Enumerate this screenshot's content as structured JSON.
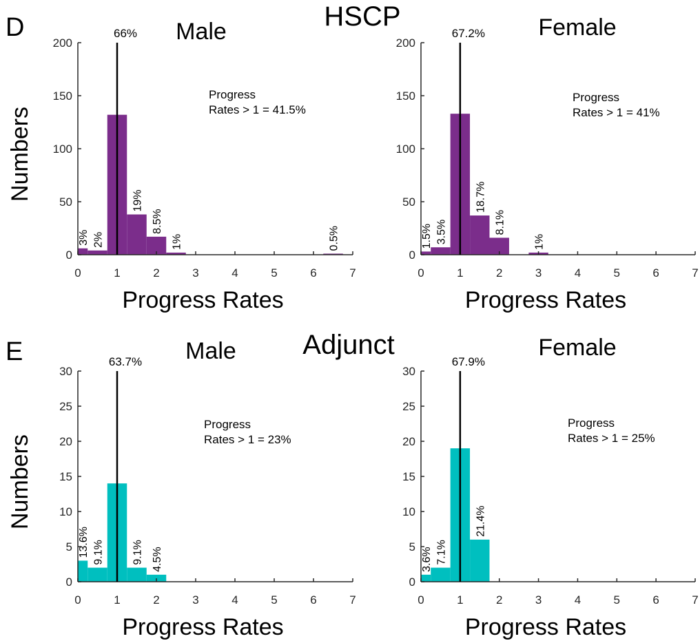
{
  "figure": {
    "panel_letters": [
      "D",
      "E"
    ],
    "group_titles": [
      "HSCP",
      "Adjunct"
    ]
  },
  "colors": {
    "purple": "#7b2d8b",
    "teal": "#00bfbf",
    "axis": "#262626",
    "text": "#000000"
  },
  "chart_data": [
    {
      "type": "bar",
      "group": "HSCP",
      "title": "Male",
      "xlabel": "Progress Rates",
      "ylabel": "Numbers",
      "xlim": [
        0,
        7
      ],
      "ylim": [
        0,
        200
      ],
      "xticks": [
        "0",
        "1",
        "2",
        "3",
        "4",
        "5",
        "6",
        "7"
      ],
      "yticks": [
        "0",
        "50",
        "100",
        "150",
        "200"
      ],
      "bin_width": 0.5,
      "bins": [
        {
          "start": 0.0,
          "value": 6,
          "label": "3%"
        },
        {
          "start": 0.25,
          "value": 4,
          "label": "2%"
        },
        {
          "start": 0.75,
          "value": 132,
          "label": ""
        },
        {
          "start": 1.25,
          "value": 38,
          "label": "19%"
        },
        {
          "start": 1.75,
          "value": 17,
          "label": "8.5%"
        },
        {
          "start": 2.25,
          "value": 2,
          "label": "1%"
        },
        {
          "start": 6.25,
          "value": 1,
          "label": "0.5%"
        }
      ],
      "ref_line": {
        "x": 1,
        "label": "66%"
      },
      "annotation": [
        "Progress",
        "Rates > 1 = 41.5%"
      ],
      "color": "#7b2d8b"
    },
    {
      "type": "bar",
      "group": "HSCP",
      "title": "Female",
      "xlabel": "Progress Rates",
      "ylabel": "",
      "xlim": [
        0,
        7
      ],
      "ylim": [
        0,
        200
      ],
      "xticks": [
        "0",
        "1",
        "2",
        "3",
        "4",
        "5",
        "6",
        "7"
      ],
      "yticks": [
        "0",
        "50",
        "100",
        "150",
        "200"
      ],
      "bin_width": 0.5,
      "bins": [
        {
          "start": 0.0,
          "value": 3,
          "label": "1.5%"
        },
        {
          "start": 0.25,
          "value": 7,
          "label": "3.5%"
        },
        {
          "start": 0.75,
          "value": 133,
          "label": ""
        },
        {
          "start": 1.25,
          "value": 37,
          "label": "18.7%"
        },
        {
          "start": 1.75,
          "value": 16,
          "label": "8.1%"
        },
        {
          "start": 2.75,
          "value": 2,
          "label": "1%"
        }
      ],
      "ref_line": {
        "x": 1,
        "label": "67.2%"
      },
      "annotation": [
        "Progress",
        "Rates > 1 = 41%"
      ],
      "color": "#7b2d8b"
    },
    {
      "type": "bar",
      "group": "Adjunct",
      "title": "Male",
      "xlabel": "Progress Rates",
      "ylabel": "Numbers",
      "xlim": [
        0,
        7
      ],
      "ylim": [
        0,
        30
      ],
      "xticks": [
        "0",
        "1",
        "2",
        "3",
        "4",
        "5",
        "6",
        "7"
      ],
      "yticks": [
        "0",
        "5",
        "10",
        "15",
        "20",
        "25",
        "30"
      ],
      "bin_width": 0.5,
      "bins": [
        {
          "start": 0.0,
          "value": 3,
          "label": "13.6%"
        },
        {
          "start": 0.25,
          "value": 2,
          "label": "9.1%"
        },
        {
          "start": 0.75,
          "value": 14,
          "label": ""
        },
        {
          "start": 1.25,
          "value": 2,
          "label": "9.1%"
        },
        {
          "start": 1.75,
          "value": 1,
          "label": "4.5%"
        }
      ],
      "ref_line": {
        "x": 1,
        "label": "63.7%"
      },
      "annotation": [
        "Progress",
        "Rates > 1 = 23%"
      ],
      "color": "#00bfbf"
    },
    {
      "type": "bar",
      "group": "Adjunct",
      "title": "Female",
      "xlabel": "Progress Rates",
      "ylabel": "",
      "xlim": [
        0,
        7
      ],
      "ylim": [
        0,
        30
      ],
      "xticks": [
        "0",
        "1",
        "2",
        "3",
        "4",
        "5",
        "6",
        "7"
      ],
      "yticks": [
        "0",
        "5",
        "10",
        "15",
        "20",
        "25",
        "30"
      ],
      "bin_width": 0.5,
      "bins": [
        {
          "start": 0.0,
          "value": 1,
          "label": "3.6%"
        },
        {
          "start": 0.25,
          "value": 2,
          "label": "7.1%"
        },
        {
          "start": 0.75,
          "value": 19,
          "label": ""
        },
        {
          "start": 1.25,
          "value": 6,
          "label": "21.4%"
        }
      ],
      "ref_line": {
        "x": 1,
        "label": "67.9%"
      },
      "annotation": [
        "Progress",
        "Rates > 1 = 25%"
      ],
      "color": "#00bfbf"
    }
  ]
}
